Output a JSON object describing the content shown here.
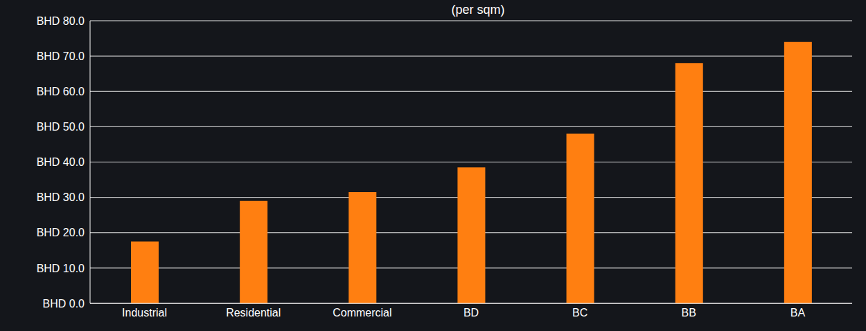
{
  "chart_data": {
    "type": "bar",
    "title": "(per sqm)",
    "categories": [
      "Industrial",
      "Residential",
      "Commercial",
      "BD",
      "BC",
      "BB",
      "BA"
    ],
    "values": [
      17.5,
      29,
      31.5,
      38.5,
      48,
      68,
      74
    ],
    "color": "#ff7f11",
    "ylim": [
      0,
      80
    ],
    "yticks": [
      {
        "value": 0,
        "label": "BHD 0.0"
      },
      {
        "value": 10,
        "label": "BHD 10.0"
      },
      {
        "value": 20,
        "label": "BHD 20.0"
      },
      {
        "value": 30,
        "label": "BHD 30.0"
      },
      {
        "value": 40,
        "label": "BHD 40.0"
      },
      {
        "value": 50,
        "label": "BHD 50.0"
      },
      {
        "value": 60,
        "label": "BHD 60.0"
      },
      {
        "value": 70,
        "label": "BHD 70.0"
      },
      {
        "value": 80,
        "label": "BHD 80.0"
      }
    ],
    "grid": true
  }
}
